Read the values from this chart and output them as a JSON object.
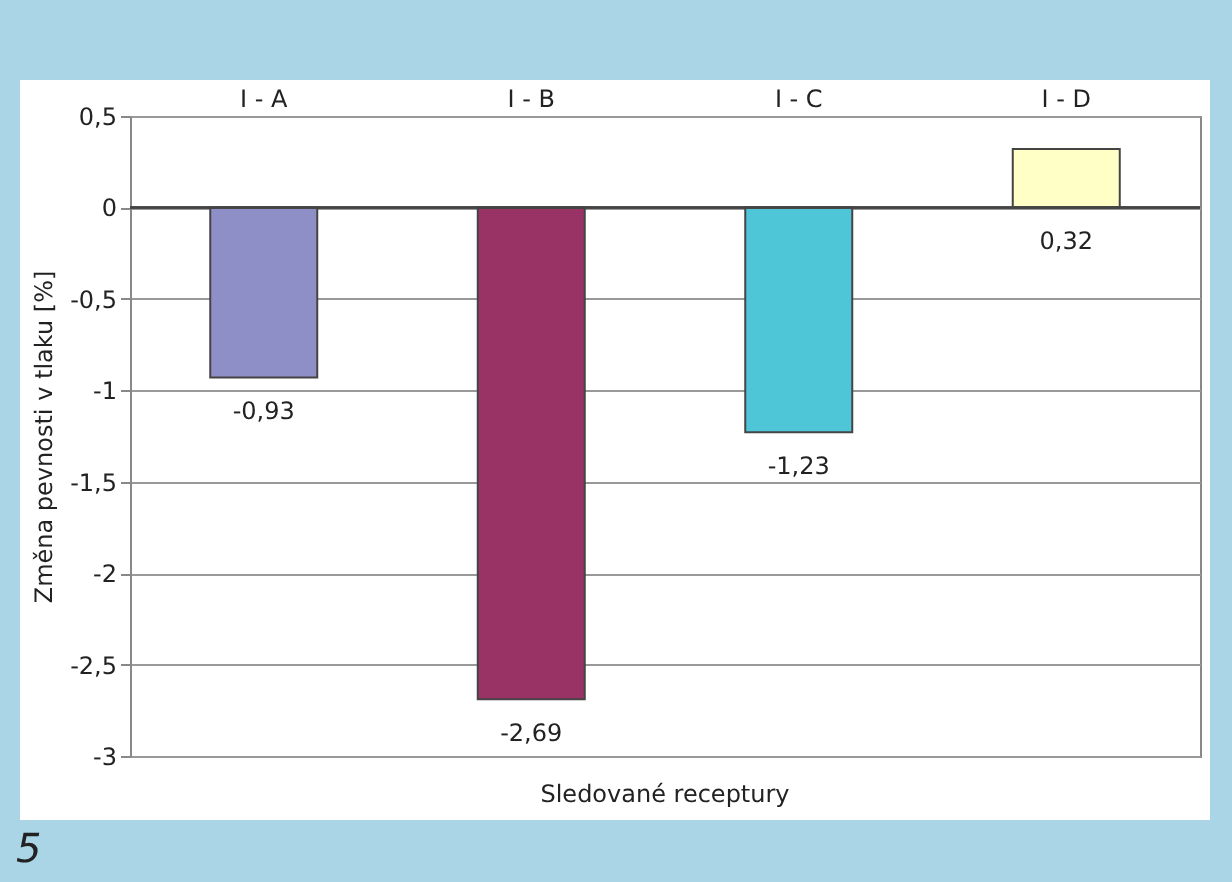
{
  "chart_data": {
    "type": "bar",
    "categories": [
      "I - A",
      "I - B",
      "I - C",
      "I - D"
    ],
    "values": [
      -0.93,
      -2.69,
      -1.23,
      0.32
    ],
    "colors": [
      "#8f8fc8",
      "#993366",
      "#4fc6d8",
      "#ffffc6"
    ],
    "value_labels": [
      "-0,93",
      "-2,69",
      "-1,23",
      "0,32"
    ],
    "xlabel": "Sledované receptury",
    "ylabel": "Změna pevnosti v tlaku [%]",
    "ylim": [
      -3,
      0.5
    ],
    "yticks": [
      {
        "value": -3,
        "label": "-3"
      },
      {
        "value": -2.5,
        "label": "-2,5"
      },
      {
        "value": -2,
        "label": "-2"
      },
      {
        "value": -1.5,
        "label": "-1,5"
      },
      {
        "value": -1,
        "label": "-1"
      },
      {
        "value": -0.5,
        "label": "-0,5"
      },
      {
        "value": 0,
        "label": "0"
      },
      {
        "value": 0.5,
        "label": "0,5"
      }
    ],
    "grid": "y",
    "annotations": [
      "5"
    ]
  }
}
